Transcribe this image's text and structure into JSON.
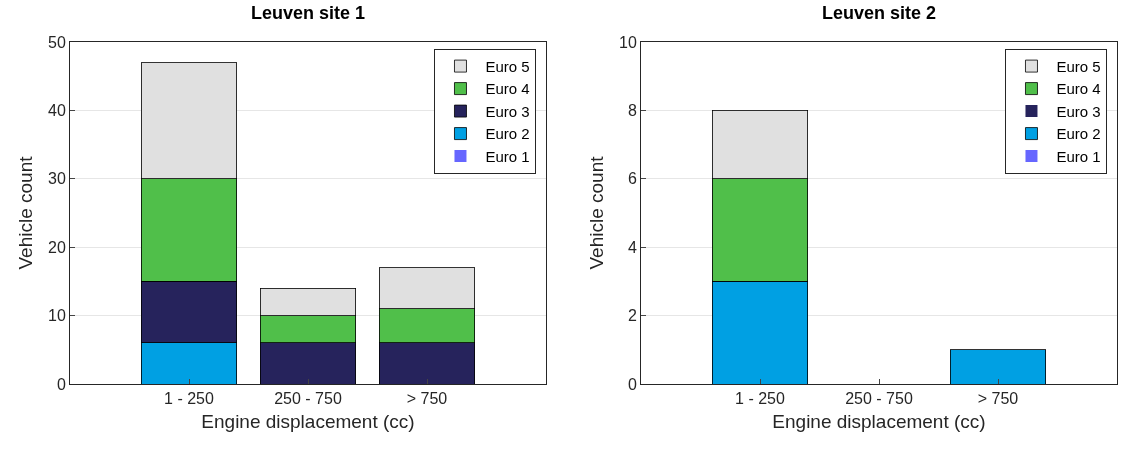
{
  "chart_data": [
    {
      "type": "bar",
      "title": "Leuven site 1",
      "xlabel": "Engine displacement (cc)",
      "ylabel": "Vehicle count",
      "categories": [
        "1 - 250",
        "250 - 750",
        "> 750"
      ],
      "stacked": true,
      "ylim": [
        0,
        50
      ],
      "yticks": [
        0,
        10,
        20,
        30,
        40,
        50
      ],
      "grid": "y",
      "legend": "top right",
      "series": [
        {
          "name": "Euro 1",
          "color": "#6666ff",
          "values": [
            0,
            0,
            0
          ]
        },
        {
          "name": "Euro 2",
          "color": "#00a0e3",
          "values": [
            6,
            0,
            0
          ]
        },
        {
          "name": "Euro 3",
          "color": "#26235c",
          "values": [
            9,
            6,
            6
          ]
        },
        {
          "name": "Euro 4",
          "color": "#50bf4a",
          "values": [
            15,
            4,
            5
          ]
        },
        {
          "name": "Euro 5",
          "color": "#e0e0e0",
          "values": [
            17,
            4,
            6
          ]
        }
      ]
    },
    {
      "type": "bar",
      "title": "Leuven site 2",
      "xlabel": "Engine displacement (cc)",
      "ylabel": "Vehicle count",
      "categories": [
        "1 - 250",
        "250 - 750",
        "> 750"
      ],
      "stacked": true,
      "ylim": [
        0,
        10
      ],
      "yticks": [
        0,
        2,
        4,
        6,
        8,
        10
      ],
      "grid": "y",
      "legend": "top right",
      "series": [
        {
          "name": "Euro 1",
          "color": "#6666ff",
          "values": [
            0,
            0,
            0
          ]
        },
        {
          "name": "Euro 2",
          "color": "#00a0e3",
          "values": [
            3,
            0,
            1
          ]
        },
        {
          "name": "Euro 3",
          "color": "#26235c",
          "values": [
            0,
            0,
            0
          ]
        },
        {
          "name": "Euro 4",
          "color": "#50bf4a",
          "values": [
            3,
            0,
            0
          ]
        },
        {
          "name": "Euro 5",
          "color": "#e0e0e0",
          "values": [
            2,
            0,
            0
          ]
        }
      ]
    }
  ]
}
